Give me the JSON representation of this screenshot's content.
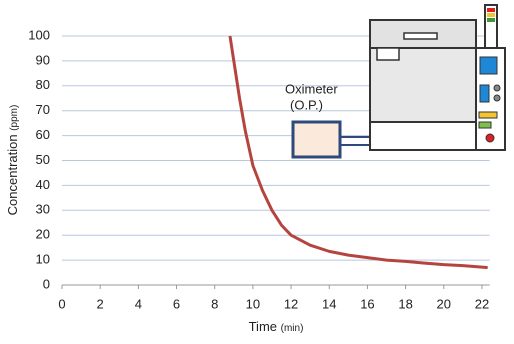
{
  "chart_data": {
    "type": "line",
    "x_label": "Time",
    "x_label_unit": "(min)",
    "y_label": "Concentration",
    "y_label_unit": "(ppm)",
    "annotations": [
      "Oximeter",
      "(O.P.)"
    ],
    "x": [
      8.8,
      9.0,
      9.3,
      9.6,
      10,
      10.5,
      11,
      11.5,
      12,
      13,
      14,
      15,
      16,
      17,
      18,
      19,
      20,
      21,
      22,
      22.3
    ],
    "series": [
      {
        "color": "#b5443f",
        "values": [
          100,
          90,
          75,
          62,
          48,
          38,
          30,
          24,
          20,
          16,
          13.5,
          12,
          11,
          10,
          9.5,
          8.8,
          8.2,
          7.8,
          7.2,
          7
        ]
      }
    ],
    "xlim": [
      0,
      22.4
    ],
    "ylim": [
      0,
      100
    ],
    "xticks": [
      0,
      2,
      4,
      6,
      8,
      10,
      12,
      14,
      16,
      18,
      20,
      22
    ],
    "yticks": [
      0,
      10,
      20,
      30,
      40,
      50,
      60,
      70,
      80,
      90,
      100
    ],
    "grid": true
  }
}
